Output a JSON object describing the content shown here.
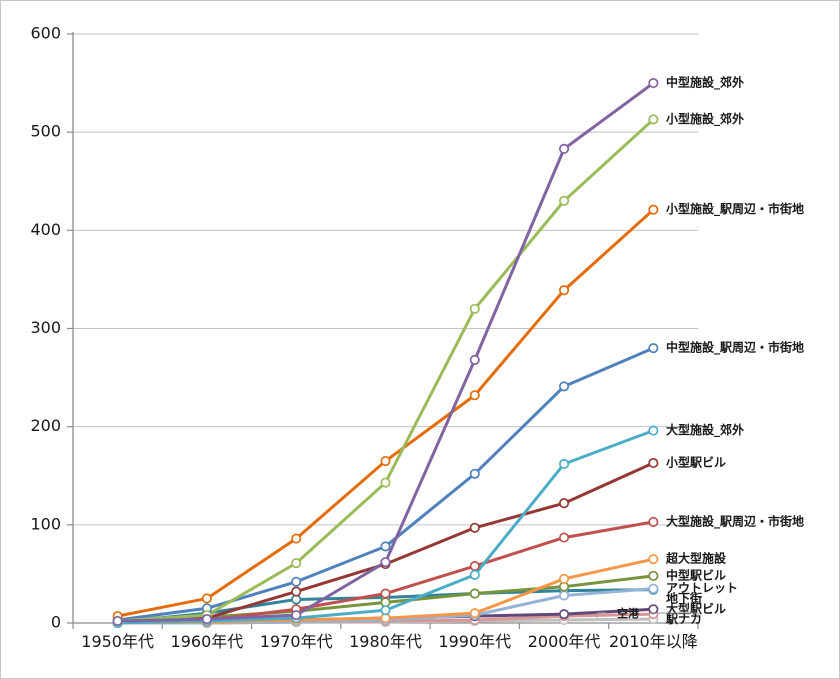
{
  "page": {
    "background": "#FFFFFF",
    "frame_border": "#C6C6C6"
  },
  "chart_data": {
    "type": "line",
    "title": "",
    "xlabel": "",
    "ylabel": "",
    "categories": [
      "1950年代",
      "1960年代",
      "1970年代",
      "1980年代",
      "1990年代",
      "2000年代",
      "2010年以降"
    ],
    "series": [
      {
        "name": "中型施設_郊外",
        "color": "#8064A2",
        "values": [
          2,
          4,
          8,
          62,
          268,
          483,
          550
        ]
      },
      {
        "name": "小型施設_郊外",
        "color": "#9BBB59",
        "values": [
          2,
          8,
          61,
          143,
          320,
          430,
          513
        ]
      },
      {
        "name": "小型施設_駅周辺・市街地",
        "color": "#E46C0A",
        "values": [
          7,
          25,
          86,
          165,
          232,
          339,
          421
        ]
      },
      {
        "name": "中型施設_駅周辺・市街地",
        "color": "#4F81BD",
        "values": [
          3,
          15,
          42,
          78,
          152,
          241,
          280
        ]
      },
      {
        "name": "大型施設_郊外",
        "color": "#4BACC6",
        "values": [
          0,
          2,
          5,
          13,
          49,
          162,
          196
        ]
      },
      {
        "name": "小型駅ビル",
        "color": "#953735",
        "values": [
          2,
          5,
          32,
          60,
          97,
          122,
          163
        ]
      },
      {
        "name": "大型施設_駅周辺・市街地",
        "color": "#C0504D",
        "values": [
          1,
          3,
          14,
          30,
          58,
          87,
          103
        ]
      },
      {
        "name": "超大型施設",
        "color": "#F79646",
        "values": [
          0,
          1,
          3,
          5,
          10,
          45,
          65
        ]
      },
      {
        "name": "中型駅ビル",
        "color": "#77933C",
        "values": [
          1,
          6,
          12,
          21,
          30,
          37,
          48
        ]
      },
      {
        "name": "アウトレット",
        "color": "#95B3D7",
        "values": [
          0,
          0,
          1,
          3,
          8,
          28,
          35
        ]
      },
      {
        "name": "地下街",
        "color": "#31849B",
        "values": [
          1,
          10,
          24,
          26,
          30,
          33,
          34
        ]
      },
      {
        "name": "大型駅ビル",
        "color": "#60497A",
        "values": [
          0,
          1,
          3,
          5,
          7,
          9,
          14
        ]
      },
      {
        "name": "駅ナカ",
        "color": "#D99694",
        "values": [
          0,
          0,
          1,
          2,
          3,
          7,
          9
        ]
      },
      {
        "name": "空港",
        "color": "#BFBFBF",
        "values": [
          0,
          0,
          1,
          1,
          2,
          3,
          4
        ],
        "label_inside": true
      }
    ],
    "ylim": [
      0,
      600
    ],
    "ytick_step": 100,
    "grid": "horizontal",
    "legend_position": "labels-at-line-ends",
    "axis_color": "#8C8C8C",
    "grid_color": "#C3C3C3",
    "marker": "open-circle",
    "marker_fill": "#FFFFFF"
  }
}
